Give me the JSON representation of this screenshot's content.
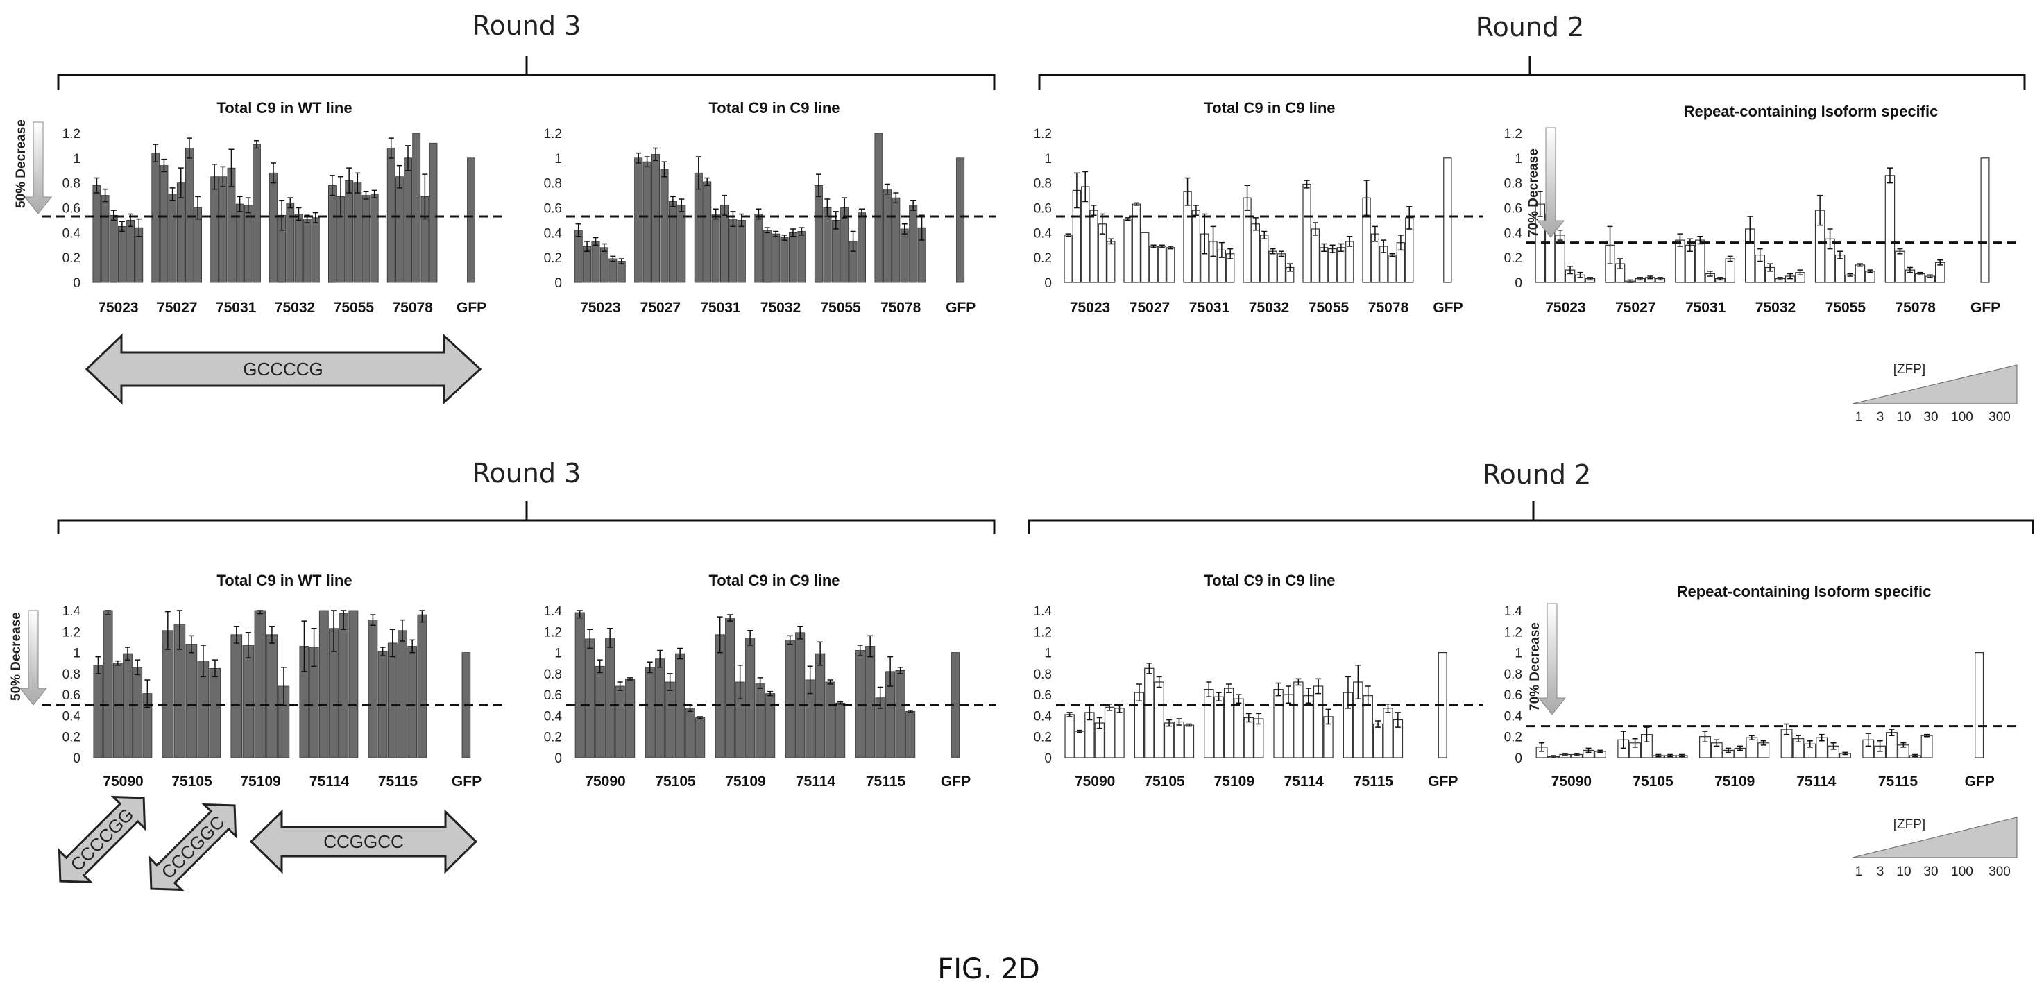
{
  "figure_label": "FIG. 2D",
  "round_labels": [
    "Round 3",
    "Round 2",
    "Round 3",
    "Round 2"
  ],
  "side_labels": [
    "50% Decrease",
    "70% Decrease",
    "50% Decrease",
    "70% Decrease"
  ],
  "zfp_label": "[ZFP]",
  "zfp_doses": [
    "1",
    "3",
    "10",
    "30",
    "100",
    "300"
  ],
  "sequences": [
    "GCCCCG",
    "CCCCGG",
    "CCCGGC",
    "CCGGCC"
  ],
  "colors": {
    "dark_bar": "#6b6b6b",
    "light_bar": "#ffffff",
    "arrow_fill": "#c8c8c8",
    "text": "#111111"
  },
  "chart_data": [
    {
      "type": "bar",
      "title": "Total C9 in WT line",
      "style": "dark",
      "categories": [
        "75023",
        "75027",
        "75031",
        "75032",
        "75055",
        "75078",
        "GFP"
      ],
      "values": [
        [
          0.78,
          0.7,
          0.54,
          0.45,
          0.5,
          0.44
        ],
        [
          1.04,
          0.94,
          0.71,
          0.8,
          1.08,
          0.6
        ],
        [
          0.85,
          0.85,
          0.92,
          0.63,
          0.62,
          1.11
        ],
        [
          0.88,
          0.54,
          0.64,
          0.55,
          0.51,
          0.52
        ],
        [
          0.78,
          0.69,
          0.82,
          0.8,
          0.7,
          0.71
        ],
        [
          1.08,
          0.85,
          1.0,
          1.22,
          0.69,
          1.12
        ],
        [
          1.0
        ]
      ],
      "errors": [
        [
          0.06,
          0.05,
          0.04,
          0.04,
          0.05,
          0.07
        ],
        [
          0.07,
          0.05,
          0.05,
          0.12,
          0.08,
          0.09
        ],
        [
          0.1,
          0.08,
          0.15,
          0.06,
          0.06,
          0.03
        ],
        [
          0.08,
          0.12,
          0.04,
          0.05,
          0.03,
          0.04
        ],
        [
          0.08,
          0.16,
          0.1,
          0.08,
          0.03,
          0.03
        ],
        [
          0.08,
          0.09,
          0.1,
          0.0,
          0.18,
          0.0
        ],
        [
          0.0
        ]
      ],
      "ylim": [
        0,
        1.2
      ],
      "yticks": [
        "0",
        "0.2",
        "0.4",
        "0.6",
        "0.8",
        "1",
        "1.2"
      ],
      "threshold": 0.53
    },
    {
      "type": "bar",
      "title": "Total C9 in C9 line",
      "style": "dark",
      "categories": [
        "75023",
        "75027",
        "75031",
        "75032",
        "75055",
        "75078",
        "GFP"
      ],
      "values": [
        [
          0.42,
          0.29,
          0.33,
          0.28,
          0.19,
          0.17
        ],
        [
          1.0,
          0.97,
          1.03,
          0.91,
          0.65,
          0.62
        ],
        [
          0.88,
          0.81,
          0.55,
          0.62,
          0.51,
          0.5
        ],
        [
          0.55,
          0.42,
          0.39,
          0.36,
          0.4,
          0.41
        ],
        [
          0.78,
          0.6,
          0.5,
          0.6,
          0.33,
          0.56
        ],
        [
          1.2,
          0.75,
          0.68,
          0.43,
          0.62,
          0.44
        ],
        [
          1.0
        ]
      ],
      "errors": [
        [
          0.05,
          0.04,
          0.03,
          0.03,
          0.02,
          0.02
        ],
        [
          0.04,
          0.04,
          0.05,
          0.06,
          0.04,
          0.05
        ],
        [
          0.13,
          0.03,
          0.04,
          0.08,
          0.06,
          0.05
        ],
        [
          0.04,
          0.02,
          0.02,
          0.02,
          0.03,
          0.03
        ],
        [
          0.09,
          0.07,
          0.07,
          0.08,
          0.08,
          0.03
        ],
        [
          0.0,
          0.04,
          0.04,
          0.04,
          0.04,
          0.1
        ],
        [
          0.0
        ]
      ],
      "ylim": [
        0,
        1.2
      ],
      "yticks": [
        "0",
        "0.2",
        "0.4",
        "0.6",
        "0.8",
        "1",
        "1.2"
      ],
      "threshold": 0.53
    },
    {
      "type": "bar",
      "title": "Total C9 in C9 line",
      "style": "light",
      "categories": [
        "75023",
        "75027",
        "75031",
        "75032",
        "75055",
        "75078",
        "GFP"
      ],
      "values": [
        [
          0.38,
          0.74,
          0.77,
          0.58,
          0.47,
          0.33
        ],
        [
          0.51,
          0.63,
          0.4,
          0.29,
          0.29,
          0.28
        ],
        [
          0.73,
          0.58,
          0.39,
          0.33,
          0.26,
          0.23
        ],
        [
          0.68,
          0.47,
          0.38,
          0.25,
          0.23,
          0.12
        ],
        [
          0.79,
          0.43,
          0.28,
          0.27,
          0.28,
          0.33
        ],
        [
          0.68,
          0.39,
          0.29,
          0.22,
          0.32,
          0.52
        ],
        [
          1.0
        ]
      ],
      "errors": [
        [
          0.01,
          0.14,
          0.12,
          0.04,
          0.08,
          0.02
        ],
        [
          0.01,
          0.01,
          0.0,
          0.01,
          0.01,
          0.01
        ],
        [
          0.11,
          0.04,
          0.16,
          0.12,
          0.06,
          0.04
        ],
        [
          0.1,
          0.05,
          0.03,
          0.02,
          0.02,
          0.03
        ],
        [
          0.03,
          0.05,
          0.03,
          0.03,
          0.03,
          0.04
        ],
        [
          0.14,
          0.06,
          0.05,
          0.01,
          0.06,
          0.09
        ],
        [
          0.0
        ]
      ],
      "ylim": [
        0,
        1.2
      ],
      "yticks": [
        "0",
        "0.2",
        "0.4",
        "0.6",
        "0.8",
        "1",
        "1.2"
      ],
      "threshold": 0.53
    },
    {
      "type": "bar",
      "title": "Repeat-containing Isoform specific",
      "style": "light",
      "categories": [
        "75023",
        "75027",
        "75031",
        "75032",
        "75055",
        "75078",
        "GFP"
      ],
      "values": [
        [
          0.63,
          0.55,
          0.38,
          0.1,
          0.06,
          0.03
        ],
        [
          0.3,
          0.15,
          0.01,
          0.03,
          0.04,
          0.03
        ],
        [
          0.34,
          0.3,
          0.34,
          0.07,
          0.03,
          0.19
        ],
        [
          0.43,
          0.22,
          0.12,
          0.03,
          0.05,
          0.08
        ],
        [
          0.58,
          0.35,
          0.22,
          0.06,
          0.14,
          0.09
        ],
        [
          0.86,
          0.25,
          0.1,
          0.07,
          0.05,
          0.16
        ],
        [
          1.0
        ]
      ],
      "errors": [
        [
          0.1,
          0.06,
          0.04,
          0.03,
          0.02,
          0.01
        ],
        [
          0.15,
          0.04,
          0.01,
          0.01,
          0.01,
          0.01
        ],
        [
          0.05,
          0.05,
          0.03,
          0.02,
          0.01,
          0.02
        ],
        [
          0.1,
          0.05,
          0.03,
          0.01,
          0.02,
          0.02
        ],
        [
          0.12,
          0.08,
          0.03,
          0.01,
          0.01,
          0.01
        ],
        [
          0.06,
          0.02,
          0.02,
          0.01,
          0.01,
          0.02
        ],
        [
          0.0
        ]
      ],
      "ylim": [
        0,
        1.2
      ],
      "yticks": [
        "0",
        "0.2",
        "0.4",
        "0.6",
        "0.8",
        "1",
        "1.2"
      ],
      "threshold": 0.32
    },
    {
      "type": "bar",
      "title": "Total C9 in WT line",
      "style": "dark",
      "categories": [
        "75090",
        "75105",
        "75109",
        "75114",
        "75115",
        "GFP"
      ],
      "values": [
        [
          0.88,
          1.43,
          0.9,
          0.99,
          0.86,
          0.61
        ],
        [
          1.21,
          1.27,
          1.08,
          0.92,
          0.85
        ],
        [
          1.17,
          1.07,
          1.43,
          1.17,
          0.68
        ],
        [
          1.06,
          1.05,
          1.49,
          1.23,
          1.37,
          1.52
        ],
        [
          1.31,
          1.01,
          1.09,
          1.21,
          1.06,
          1.36
        ],
        [
          1.0
        ]
      ],
      "errors": [
        [
          0.08,
          0.07,
          0.02,
          0.06,
          0.07,
          0.13
        ],
        [
          0.18,
          0.24,
          0.08,
          0.15,
          0.08
        ],
        [
          0.08,
          0.12,
          0.06,
          0.08,
          0.18
        ],
        [
          0.24,
          0.18,
          0.0,
          0.22,
          0.15,
          0.0
        ],
        [
          0.05,
          0.04,
          0.13,
          0.1,
          0.06,
          0.07
        ],
        [
          0.0
        ]
      ],
      "ylim": [
        0,
        1.4
      ],
      "yticks": [
        "0",
        "0.2",
        "0.4",
        "0.6",
        "0.8",
        "1",
        "1.2",
        "1.4"
      ],
      "threshold": 0.5
    },
    {
      "type": "bar",
      "title": "Total C9 in C9 line",
      "style": "dark",
      "categories": [
        "75090",
        "75105",
        "75109",
        "75114",
        "75115",
        "GFP"
      ],
      "values": [
        [
          1.38,
          1.13,
          0.87,
          1.14,
          0.68,
          0.75
        ],
        [
          0.86,
          0.94,
          0.72,
          0.99,
          0.47,
          0.38
        ],
        [
          1.17,
          1.33,
          0.72,
          1.14,
          0.71,
          0.61
        ],
        [
          1.12,
          1.19,
          0.74,
          0.99,
          0.72,
          0.52
        ],
        [
          1.02,
          1.06,
          0.57,
          0.82,
          0.83,
          0.44
        ],
        [
          1.0
        ]
      ],
      "errors": [
        [
          0.05,
          0.09,
          0.06,
          0.09,
          0.04,
          0.01
        ],
        [
          0.05,
          0.08,
          0.08,
          0.05,
          0.03,
          0.01
        ],
        [
          0.17,
          0.03,
          0.16,
          0.07,
          0.05,
          0.02
        ],
        [
          0.04,
          0.06,
          0.13,
          0.11,
          0.02,
          0.01
        ],
        [
          0.05,
          0.1,
          0.1,
          0.14,
          0.03,
          0.01
        ],
        [
          0.0
        ]
      ],
      "ylim": [
        0,
        1.4
      ],
      "yticks": [
        "0",
        "0.2",
        "0.4",
        "0.6",
        "0.8",
        "1",
        "1.2",
        "1.4"
      ],
      "threshold": 0.5
    },
    {
      "type": "bar",
      "title": "Total C9 in C9 line",
      "style": "light",
      "categories": [
        "75090",
        "75105",
        "75109",
        "75114",
        "75115",
        "GFP"
      ],
      "values": [
        [
          0.41,
          0.25,
          0.43,
          0.33,
          0.48,
          0.47
        ],
        [
          0.62,
          0.85,
          0.72,
          0.33,
          0.34,
          0.31
        ],
        [
          0.65,
          0.58,
          0.66,
          0.56,
          0.38,
          0.37
        ],
        [
          0.65,
          0.6,
          0.72,
          0.59,
          0.68,
          0.39
        ],
        [
          0.62,
          0.72,
          0.59,
          0.32,
          0.47,
          0.36
        ],
        [
          1.0
        ]
      ],
      "errors": [
        [
          0.02,
          0.01,
          0.07,
          0.05,
          0.03,
          0.04
        ],
        [
          0.08,
          0.05,
          0.05,
          0.03,
          0.03,
          0.01
        ],
        [
          0.07,
          0.04,
          0.04,
          0.04,
          0.04,
          0.05
        ],
        [
          0.06,
          0.08,
          0.03,
          0.07,
          0.07,
          0.07
        ],
        [
          0.15,
          0.16,
          0.09,
          0.03,
          0.04,
          0.07
        ],
        [
          0.0
        ]
      ],
      "ylim": [
        0,
        1.4
      ],
      "yticks": [
        "0",
        "0.2",
        "0.4",
        "0.6",
        "0.8",
        "1",
        "1.2",
        "1.4"
      ],
      "threshold": 0.5
    },
    {
      "type": "bar",
      "title": "Repeat-containing Isoform specific",
      "style": "light",
      "categories": [
        "75090",
        "75105",
        "75109",
        "75114",
        "75115",
        "GFP"
      ],
      "values": [
        [
          0.1,
          0.01,
          0.03,
          0.03,
          0.07,
          0.06
        ],
        [
          0.17,
          0.14,
          0.22,
          0.02,
          0.02,
          0.02
        ],
        [
          0.2,
          0.14,
          0.07,
          0.09,
          0.19,
          0.14
        ],
        [
          0.27,
          0.18,
          0.13,
          0.19,
          0.11,
          0.04
        ],
        [
          0.17,
          0.11,
          0.24,
          0.12,
          0.02,
          0.21
        ],
        [
          1.0
        ]
      ],
      "errors": [
        [
          0.04,
          0.01,
          0.01,
          0.01,
          0.02,
          0.01
        ],
        [
          0.08,
          0.04,
          0.07,
          0.01,
          0.01,
          0.01
        ],
        [
          0.05,
          0.03,
          0.02,
          0.02,
          0.02,
          0.02
        ],
        [
          0.05,
          0.03,
          0.03,
          0.03,
          0.03,
          0.01
        ],
        [
          0.06,
          0.05,
          0.03,
          0.02,
          0.01,
          0.01
        ],
        [
          0.0
        ]
      ],
      "ylim": [
        0,
        1.4
      ],
      "yticks": [
        "0",
        "0.2",
        "0.4",
        "0.6",
        "0.8",
        "1",
        "1.2",
        "1.4"
      ],
      "threshold": 0.3
    }
  ]
}
